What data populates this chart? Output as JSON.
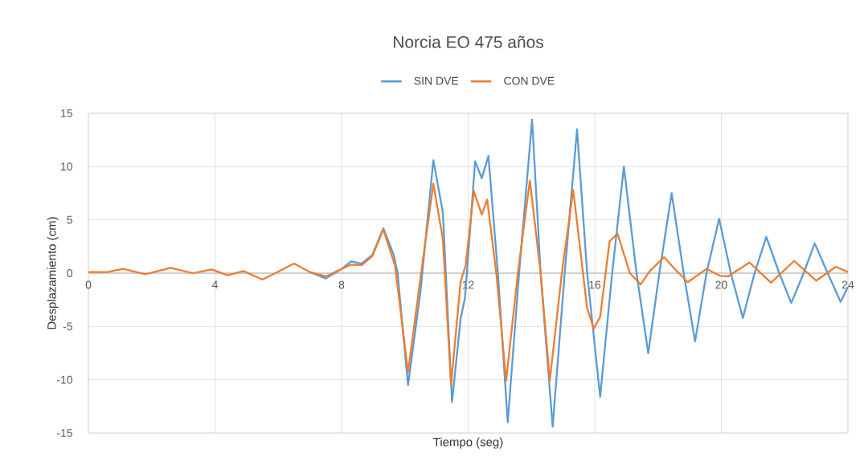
{
  "chart_data": {
    "type": "line",
    "title": "Norcia EO 475 años",
    "xlabel": "Tiempo (seg)",
    "ylabel": "Desplazamiento (cm)",
    "x": [
      7.0,
      7.5,
      8.0,
      8.3,
      8.63,
      8.97,
      9.32,
      9.65,
      9.77,
      10.1,
      10.49,
      10.9,
      11.2,
      11.49,
      11.76,
      11.9,
      12.22,
      12.43,
      12.64,
      12.94,
      13.25,
      13.61,
      14.02,
      14.29,
      14.67,
      15.05,
      15.44,
      15.76,
      16.17,
      16.55,
      16.92,
      17.32,
      17.69,
      18.04,
      18.43,
      18.81,
      19.17,
      19.53,
      19.93,
      20.3,
      20.68,
      21.05,
      21.42,
      21.83,
      22.21,
      22.6,
      22.95,
      23.36,
      23.77,
      24.0
    ],
    "series": [
      {
        "name": "SIN DVE",
        "color": "#5b9bd5",
        "values": [
          0.1,
          -0.5,
          0.4,
          1.1,
          0.9,
          1.7,
          4.2,
          1.7,
          0,
          -10.5,
          -1.8,
          10.6,
          5.7,
          -12.1,
          -4.3,
          -2.3,
          10.5,
          8.9,
          11.0,
          0,
          -14.0,
          0,
          14.4,
          0,
          -14.4,
          0,
          13.5,
          0,
          -11.6,
          0,
          10.0,
          0,
          -7.5,
          0,
          7.5,
          0,
          -6.4,
          0,
          5.1,
          0,
          -4.2,
          0,
          3.4,
          0,
          -2.8,
          0,
          2.8,
          0,
          -2.7,
          -1.3
        ]
      },
      {
        "name": "CON DVE",
        "color": "#ed7d31",
        "x": [
          0,
          0.6,
          1.1,
          1.8,
          2.6,
          3.3,
          3.9,
          4.4,
          4.9,
          5.5,
          6.5,
          7.0,
          7.5,
          8.0,
          8.3,
          8.63,
          8.97,
          9.32,
          9.69,
          10.1,
          10.49,
          10.9,
          11.2,
          11.46,
          11.76,
          11.92,
          12.18,
          12.43,
          12.6,
          12.89,
          13.2,
          13.57,
          13.95,
          14.29,
          14.58,
          14.96,
          15.32,
          15.76,
          15.97,
          16.17,
          16.47,
          16.72,
          17.11,
          17.45,
          17.74,
          18.19,
          18.51,
          18.94,
          19.53,
          19.96,
          20.21,
          20.89,
          21.57,
          22.3,
          23.0,
          23.62,
          24.0
        ],
        "values": [
          0.1,
          0.1,
          0.4,
          -0.1,
          0.5,
          0.0,
          0.35,
          -0.2,
          0.2,
          -0.6,
          0.9,
          0.1,
          -0.3,
          0.4,
          0.8,
          0.75,
          1.6,
          4.1,
          0.7,
          -9.3,
          -0.5,
          8.4,
          3.2,
          -10.5,
          -0.8,
          0.7,
          7.7,
          5.5,
          6.9,
          0,
          -10.1,
          0,
          8.7,
          0,
          -10.1,
          0,
          7.8,
          -3.3,
          -5.2,
          -4.1,
          3.0,
          3.7,
          0,
          -1.05,
          0.2,
          1.5,
          0.45,
          -0.85,
          0.4,
          -0.25,
          -0.3,
          1.0,
          -0.9,
          1.15,
          -0.7,
          0.6,
          0.1
        ]
      }
    ],
    "xlim": [
      0,
      24
    ],
    "xticks": [
      0,
      4,
      8,
      12,
      16,
      20,
      24
    ],
    "ylim": [
      -15,
      15
    ],
    "yticks": [
      -15,
      -10,
      -5,
      0,
      5,
      10,
      15
    ],
    "grid": true,
    "legend": "top",
    "marker": "none",
    "line_style": "solid"
  }
}
